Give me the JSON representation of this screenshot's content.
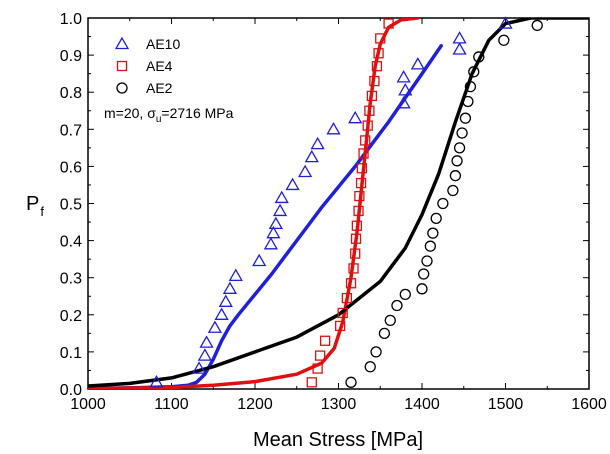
{
  "chart_data": {
    "type": "scatter",
    "xlabel": "Mean Stress [MPa]",
    "ylabel": "P",
    "ylabel_sub": "f",
    "xlim": [
      1000,
      1600
    ],
    "ylim": [
      0.0,
      1.0
    ],
    "x_ticks": [
      "1000",
      "1100",
      "1200",
      "1300",
      "1400",
      "1500",
      "1600"
    ],
    "y_ticks": [
      "0.0",
      "0.1",
      "0.2",
      "0.3",
      "0.4",
      "0.5",
      "0.6",
      "0.7",
      "0.8",
      "0.9",
      "1.0"
    ],
    "grid": false,
    "legend_position": "top-left",
    "annotation": {
      "prefix": "m=20, σ",
      "sub": "u",
      "suffix": "=2716 MPa"
    },
    "series": [
      {
        "name": "AE10",
        "marker": "triangle",
        "color": "#1f1fdc",
        "points": [
          [
            1082,
            0.018
          ],
          [
            1133,
            0.055
          ],
          [
            1140,
            0.09
          ],
          [
            1142,
            0.125
          ],
          [
            1152,
            0.165
          ],
          [
            1160,
            0.2
          ],
          [
            1165,
            0.235
          ],
          [
            1170,
            0.27
          ],
          [
            1177,
            0.305
          ],
          [
            1205,
            0.345
          ],
          [
            1219,
            0.39
          ],
          [
            1222,
            0.42
          ],
          [
            1225,
            0.445
          ],
          [
            1230,
            0.48
          ],
          [
            1232,
            0.515
          ],
          [
            1245,
            0.55
          ],
          [
            1260,
            0.585
          ],
          [
            1268,
            0.625
          ],
          [
            1275,
            0.66
          ],
          [
            1294,
            0.7
          ],
          [
            1320,
            0.73
          ],
          [
            1378,
            0.77
          ],
          [
            1380,
            0.805
          ],
          [
            1378,
            0.84
          ],
          [
            1395,
            0.875
          ],
          [
            1445,
            0.915
          ],
          [
            1445,
            0.945
          ],
          [
            1500,
            0.985
          ]
        ]
      },
      {
        "name": "AE4",
        "marker": "square",
        "color": "#e01010",
        "points": [
          [
            1268,
            0.018
          ],
          [
            1275,
            0.055
          ],
          [
            1278,
            0.09
          ],
          [
            1284,
            0.13
          ],
          [
            1302,
            0.17
          ],
          [
            1305,
            0.205
          ],
          [
            1310,
            0.245
          ],
          [
            1315,
            0.285
          ],
          [
            1318,
            0.325
          ],
          [
            1320,
            0.365
          ],
          [
            1321,
            0.405
          ],
          [
            1322,
            0.44
          ],
          [
            1324,
            0.48
          ],
          [
            1325,
            0.52
          ],
          [
            1327,
            0.555
          ],
          [
            1328,
            0.595
          ],
          [
            1330,
            0.635
          ],
          [
            1332,
            0.67
          ],
          [
            1335,
            0.71
          ],
          [
            1337,
            0.75
          ],
          [
            1340,
            0.79
          ],
          [
            1343,
            0.83
          ],
          [
            1346,
            0.87
          ],
          [
            1348,
            0.905
          ],
          [
            1350,
            0.945
          ],
          [
            1360,
            0.985
          ]
        ]
      },
      {
        "name": "AE2",
        "marker": "circle",
        "color": "#000000",
        "points": [
          [
            1315,
            0.018
          ],
          [
            1338,
            0.06
          ],
          [
            1345,
            0.1
          ],
          [
            1355,
            0.15
          ],
          [
            1362,
            0.185
          ],
          [
            1370,
            0.225
          ],
          [
            1380,
            0.255
          ],
          [
            1400,
            0.27
          ],
          [
            1402,
            0.31
          ],
          [
            1406,
            0.345
          ],
          [
            1410,
            0.385
          ],
          [
            1413,
            0.42
          ],
          [
            1417,
            0.46
          ],
          [
            1425,
            0.5
          ],
          [
            1437,
            0.535
          ],
          [
            1440,
            0.575
          ],
          [
            1442,
            0.615
          ],
          [
            1445,
            0.65
          ],
          [
            1448,
            0.69
          ],
          [
            1452,
            0.73
          ],
          [
            1455,
            0.775
          ],
          [
            1458,
            0.815
          ],
          [
            1462,
            0.855
          ],
          [
            1468,
            0.895
          ],
          [
            1498,
            0.94
          ],
          [
            1538,
            0.98
          ]
        ]
      }
    ],
    "fit_curves": [
      {
        "series": "AE10",
        "color": "#1f1fdc",
        "points": [
          [
            1000,
            0.002
          ],
          [
            1050,
            0.003
          ],
          [
            1100,
            0.006
          ],
          [
            1120,
            0.01
          ],
          [
            1130,
            0.018
          ],
          [
            1140,
            0.04
          ],
          [
            1150,
            0.08
          ],
          [
            1160,
            0.13
          ],
          [
            1170,
            0.17
          ],
          [
            1180,
            0.2
          ],
          [
            1200,
            0.255
          ],
          [
            1220,
            0.31
          ],
          [
            1240,
            0.37
          ],
          [
            1260,
            0.43
          ],
          [
            1280,
            0.49
          ],
          [
            1300,
            0.545
          ],
          [
            1320,
            0.6
          ],
          [
            1340,
            0.66
          ],
          [
            1360,
            0.72
          ],
          [
            1380,
            0.785
          ],
          [
            1400,
            0.85
          ],
          [
            1423,
            0.925
          ]
        ]
      },
      {
        "series": "AE4",
        "color": "#e01010",
        "points": [
          [
            1000,
            0.001
          ],
          [
            1100,
            0.004
          ],
          [
            1150,
            0.01
          ],
          [
            1200,
            0.02
          ],
          [
            1250,
            0.04
          ],
          [
            1280,
            0.07
          ],
          [
            1295,
            0.11
          ],
          [
            1305,
            0.18
          ],
          [
            1315,
            0.3
          ],
          [
            1322,
            0.42
          ],
          [
            1328,
            0.55
          ],
          [
            1333,
            0.66
          ],
          [
            1338,
            0.77
          ],
          [
            1344,
            0.87
          ],
          [
            1350,
            0.93
          ],
          [
            1360,
            0.975
          ],
          [
            1375,
            0.995
          ],
          [
            1395,
            1.0
          ]
        ]
      },
      {
        "series": "AE2",
        "color": "#000000",
        "points": [
          [
            1000,
            0.008
          ],
          [
            1050,
            0.015
          ],
          [
            1100,
            0.03
          ],
          [
            1150,
            0.06
          ],
          [
            1200,
            0.1
          ],
          [
            1250,
            0.14
          ],
          [
            1300,
            0.2
          ],
          [
            1350,
            0.29
          ],
          [
            1380,
            0.38
          ],
          [
            1400,
            0.47
          ],
          [
            1420,
            0.58
          ],
          [
            1440,
            0.72
          ],
          [
            1460,
            0.85
          ],
          [
            1480,
            0.94
          ],
          [
            1500,
            0.985
          ],
          [
            1530,
            1.0
          ],
          [
            1600,
            1.0
          ]
        ]
      }
    ]
  }
}
